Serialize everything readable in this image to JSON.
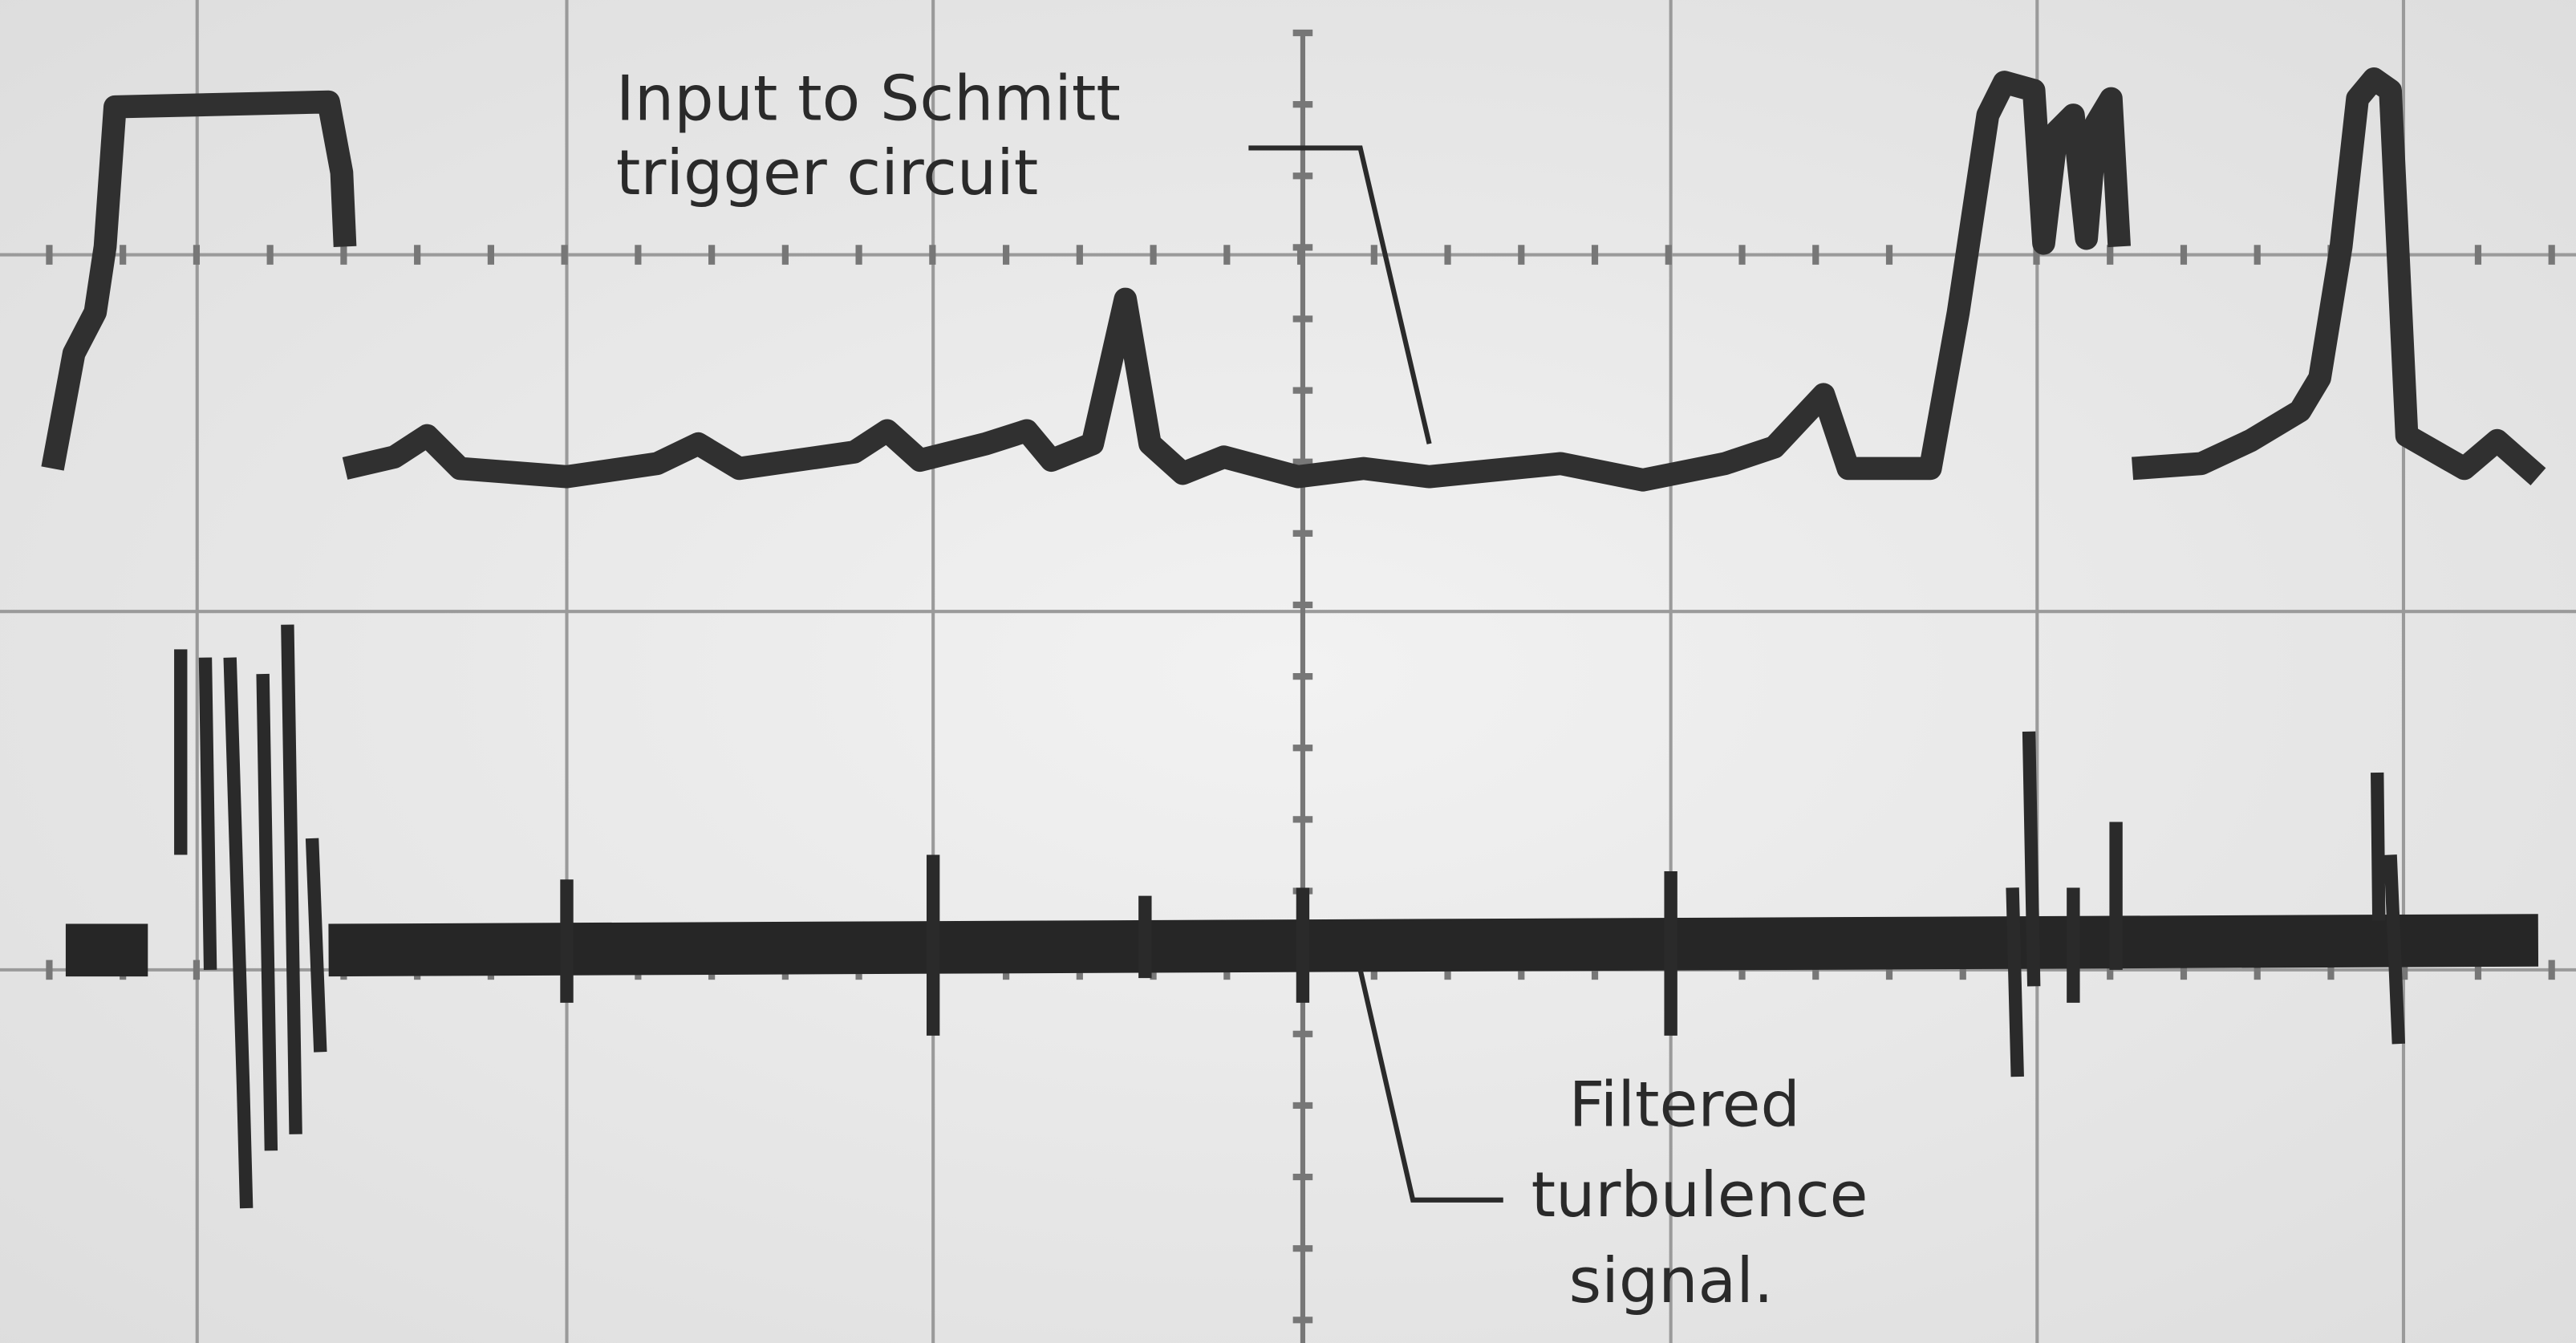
{
  "annotations": [
    {
      "lines": [
        "Input to Schmitt",
        "trigger circuit"
      ]
    },
    {
      "lines": [
        "Filtered",
        "turbulence",
        "signal."
      ]
    }
  ]
}
